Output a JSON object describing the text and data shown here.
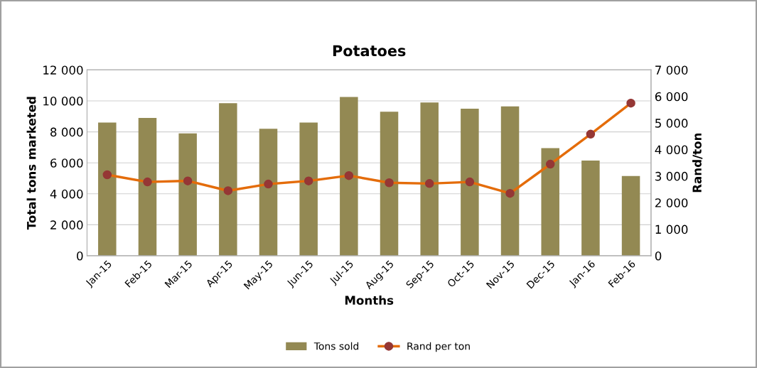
{
  "chart_data": {
    "type": "bar",
    "title": "Potatoes",
    "xlabel": "Months",
    "ylabel": "Total tons marketed",
    "y2label": "Rand/ton",
    "categories": [
      "Jan-15",
      "Feb-15",
      "Mar-15",
      "Apr-15",
      "May-15",
      "Jun-15",
      "Jul-15",
      "Aug-15",
      "Sep-15",
      "Oct-15",
      "Nov-15",
      "Dec-15",
      "Jan-16",
      "Feb-16"
    ],
    "series": [
      {
        "name": "Tons sold",
        "color": "#938953",
        "values": [
          8600,
          8900,
          7900,
          9850,
          8200,
          8600,
          10250,
          9300,
          9900,
          9500,
          9650,
          6950,
          6150,
          5150
        ]
      },
      {
        "name": "Rand per ton",
        "type": "line",
        "axis": "y2",
        "color": "#e46c0a",
        "marker": "circle",
        "values": [
          3050,
          2780,
          2820,
          2450,
          2700,
          2820,
          3020,
          2750,
          2720,
          2780,
          2350,
          3450,
          4580,
          5750
        ]
      }
    ],
    "ylim": [
      0,
      12000
    ],
    "yticks": [
      0,
      {
        "value": 2000,
        "label": "2 000"
      },
      {
        "value": 4000,
        "label": "4 000"
      },
      {
        "value": 6000,
        "label": "6 000"
      },
      {
        "value": 8000,
        "label": "8 000"
      },
      {
        "value": 10000,
        "label": "10 000"
      },
      {
        "value": 12000,
        "label": "12 000"
      }
    ],
    "y2lim": [
      0,
      7000
    ],
    "y2ticks": [
      0,
      {
        "value": 1000,
        "label": "1 000"
      },
      {
        "value": 2000,
        "label": "2 000"
      },
      {
        "value": 3000,
        "label": "3 000"
      },
      {
        "value": 4000,
        "label": "4 000"
      },
      {
        "value": 5000,
        "label": "5 000"
      },
      {
        "value": 6000,
        "label": "6 000"
      },
      {
        "value": 7000,
        "label": "7 000"
      }
    ],
    "grid": "y",
    "legend": "bottom"
  }
}
